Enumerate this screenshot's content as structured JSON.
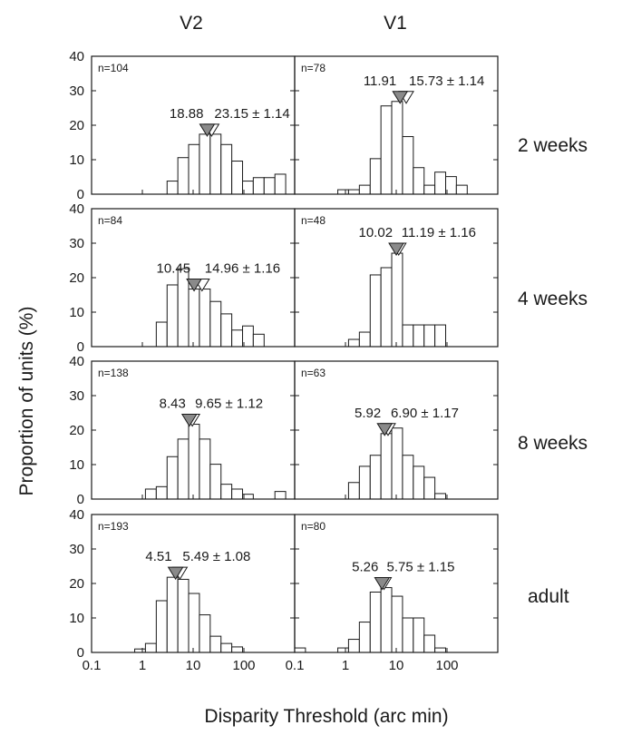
{
  "figure": {
    "column_titles": [
      "V2",
      "V1"
    ],
    "row_labels": [
      "2 weeks",
      "4 weeks",
      "8 weeks",
      "adult"
    ],
    "ylabel": "Proportion of units (%)",
    "xlabel": "Disparity Threshold (arc min)"
  },
  "chart_data": [
    {
      "type": "bar",
      "panel": "V2 / 2 weeks",
      "n_label": "n=104",
      "x_scale": "log",
      "xlim": [
        0.1,
        1000
      ],
      "ylim": [
        0,
        40
      ],
      "xticks": [],
      "yticks": [
        "0",
        "10",
        "20",
        "30",
        "40"
      ],
      "bin_edges": [
        0.1,
        0.163,
        0.266,
        0.433,
        0.707,
        1.15,
        1.88,
        3.07,
        5.0,
        8.15,
        13.3,
        21.7,
        35.4,
        57.7,
        94.1,
        153,
        250,
        408,
        665
      ],
      "values": [
        0,
        0,
        0,
        0,
        0,
        0,
        0,
        3.8,
        10.6,
        14.4,
        17.4,
        17.4,
        14.4,
        9.6,
        3.8,
        4.8,
        4.8,
        5.8
      ],
      "markers": [
        {
          "kind": "median",
          "x": 18.88,
          "label": "18.88"
        },
        {
          "kind": "mean",
          "x": 23.15,
          "label": "23.15 ± 1.14"
        }
      ]
    },
    {
      "type": "bar",
      "panel": "V1 / 2 weeks",
      "n_label": "n=78",
      "x_scale": "log",
      "xlim": [
        0.1,
        1000
      ],
      "ylim": [
        0,
        40
      ],
      "xticks": [],
      "yticks": [],
      "bin_edges": [
        0.1,
        0.163,
        0.266,
        0.433,
        0.707,
        1.15,
        1.88,
        3.07,
        5.0,
        8.15,
        13.3,
        21.7,
        35.4,
        57.7,
        94.1,
        153,
        250,
        408,
        665
      ],
      "values": [
        0,
        0,
        0,
        0,
        1.3,
        1.3,
        2.6,
        10.3,
        25.6,
        26.9,
        16.7,
        7.7,
        2.6,
        6.4,
        5.1,
        2.6,
        0,
        0
      ],
      "markers": [
        {
          "kind": "median",
          "x": 11.91,
          "label": "11.91"
        },
        {
          "kind": "mean",
          "x": 15.73,
          "label": "15.73 ± 1.14"
        }
      ]
    },
    {
      "type": "bar",
      "panel": "V2 / 4 weeks",
      "n_label": "n=84",
      "x_scale": "log",
      "xlim": [
        0.1,
        1000
      ],
      "ylim": [
        0,
        40
      ],
      "xticks": [],
      "yticks": [
        "0",
        "10",
        "20",
        "30",
        "40"
      ],
      "bin_edges": [
        0.1,
        0.163,
        0.266,
        0.433,
        0.707,
        1.15,
        1.88,
        3.07,
        5.0,
        8.15,
        13.3,
        21.7,
        35.4,
        57.7,
        94.1,
        153,
        250,
        408,
        665
      ],
      "values": [
        0,
        0,
        0,
        0,
        0,
        0,
        7.1,
        17.9,
        22.6,
        16.7,
        16.7,
        13.1,
        9.5,
        4.8,
        6.0,
        3.6,
        0,
        0
      ],
      "markers": [
        {
          "kind": "median",
          "x": 10.45,
          "label": "10.45"
        },
        {
          "kind": "mean",
          "x": 14.96,
          "label": "14.96 ± 1.16"
        }
      ]
    },
    {
      "type": "bar",
      "panel": "V1 / 4 weeks",
      "n_label": "n=48",
      "x_scale": "log",
      "xlim": [
        0.1,
        1000
      ],
      "ylim": [
        0,
        40
      ],
      "xticks": [],
      "yticks": [],
      "bin_edges": [
        0.1,
        0.163,
        0.266,
        0.433,
        0.707,
        1.15,
        1.88,
        3.07,
        5.0,
        8.15,
        13.3,
        21.7,
        35.4,
        57.7,
        94.1,
        153,
        250,
        408,
        665
      ],
      "values": [
        0,
        0,
        0,
        0,
        0,
        2.1,
        4.2,
        20.8,
        22.9,
        27.1,
        6.3,
        6.3,
        6.3,
        6.3,
        0,
        0,
        0,
        0
      ],
      "markers": [
        {
          "kind": "median",
          "x": 10.02,
          "label": "10.02"
        },
        {
          "kind": "mean",
          "x": 11.19,
          "label": "11.19 ± 1.16"
        }
      ]
    },
    {
      "type": "bar",
      "panel": "V2 / 8 weeks",
      "n_label": "n=138",
      "x_scale": "log",
      "xlim": [
        0.1,
        1000
      ],
      "ylim": [
        0,
        40
      ],
      "xticks": [],
      "yticks": [
        "0",
        "10",
        "20",
        "30",
        "40"
      ],
      "bin_edges": [
        0.1,
        0.163,
        0.266,
        0.433,
        0.707,
        1.15,
        1.88,
        3.07,
        5.0,
        8.15,
        13.3,
        21.7,
        35.4,
        57.7,
        94.1,
        153,
        250,
        408,
        665
      ],
      "values": [
        0,
        0,
        0,
        0,
        0,
        2.9,
        3.6,
        12.3,
        17.4,
        21.7,
        17.4,
        10.1,
        4.3,
        2.9,
        1.4,
        0,
        0,
        2.2
      ],
      "markers": [
        {
          "kind": "median",
          "x": 8.43,
          "label": "8.43"
        },
        {
          "kind": "mean",
          "x": 9.65,
          "label": "9.65 ± 1.12"
        }
      ]
    },
    {
      "type": "bar",
      "panel": "V1 / 8 weeks",
      "n_label": "n=63",
      "x_scale": "log",
      "xlim": [
        0.1,
        1000
      ],
      "ylim": [
        0,
        40
      ],
      "xticks": [],
      "yticks": [],
      "bin_edges": [
        0.1,
        0.163,
        0.266,
        0.433,
        0.707,
        1.15,
        1.88,
        3.07,
        5.0,
        8.15,
        13.3,
        21.7,
        35.4,
        57.7,
        94.1,
        153,
        250,
        408,
        665
      ],
      "values": [
        0,
        0,
        0,
        0,
        0,
        4.8,
        9.5,
        12.7,
        19.0,
        20.6,
        12.7,
        9.5,
        6.3,
        1.6,
        0,
        0,
        0,
        0
      ],
      "markers": [
        {
          "kind": "median",
          "x": 5.92,
          "label": "5.92"
        },
        {
          "kind": "mean",
          "x": 6.9,
          "label": "6.90 ± 1.17"
        }
      ]
    },
    {
      "type": "bar",
      "panel": "V2 / adult",
      "n_label": "n=193",
      "x_scale": "log",
      "xlim": [
        0.1,
        1000
      ],
      "ylim": [
        0,
        40
      ],
      "xticks": [
        "0.1",
        "1",
        "10",
        "100"
      ],
      "yticks": [
        "0",
        "10",
        "20",
        "30",
        "40"
      ],
      "bin_edges": [
        0.1,
        0.163,
        0.266,
        0.433,
        0.707,
        1.15,
        1.88,
        3.07,
        5.0,
        8.15,
        13.3,
        21.7,
        35.4,
        57.7,
        94.1,
        153,
        250,
        408,
        665
      ],
      "values": [
        0,
        0,
        0,
        0,
        1.0,
        2.6,
        15.0,
        21.8,
        21.2,
        17.1,
        10.9,
        4.7,
        2.6,
        1.6,
        0,
        0,
        0,
        0
      ],
      "markers": [
        {
          "kind": "median",
          "x": 4.51,
          "label": "4.51"
        },
        {
          "kind": "mean",
          "x": 5.49,
          "label": "5.49 ± 1.08"
        }
      ]
    },
    {
      "type": "bar",
      "panel": "V1 / adult",
      "n_label": "n=80",
      "x_scale": "log",
      "xlim": [
        0.1,
        1000
      ],
      "ylim": [
        0,
        40
      ],
      "xticks": [
        "0.1",
        "1",
        "10",
        "100"
      ],
      "yticks": [],
      "bin_edges": [
        0.1,
        0.163,
        0.266,
        0.433,
        0.707,
        1.15,
        1.88,
        3.07,
        5.0,
        8.15,
        13.3,
        21.7,
        35.4,
        57.7,
        94.1,
        153,
        250,
        408,
        665
      ],
      "values": [
        1.3,
        0,
        0,
        0,
        1.3,
        3.8,
        8.8,
        17.5,
        18.8,
        16.3,
        10.0,
        10.0,
        5.0,
        1.3,
        0,
        0,
        0,
        0
      ],
      "markers": [
        {
          "kind": "median",
          "x": 5.26,
          "label": "5.26"
        },
        {
          "kind": "mean",
          "x": 5.75,
          "label": "5.75 ± 1.15"
        }
      ]
    }
  ]
}
